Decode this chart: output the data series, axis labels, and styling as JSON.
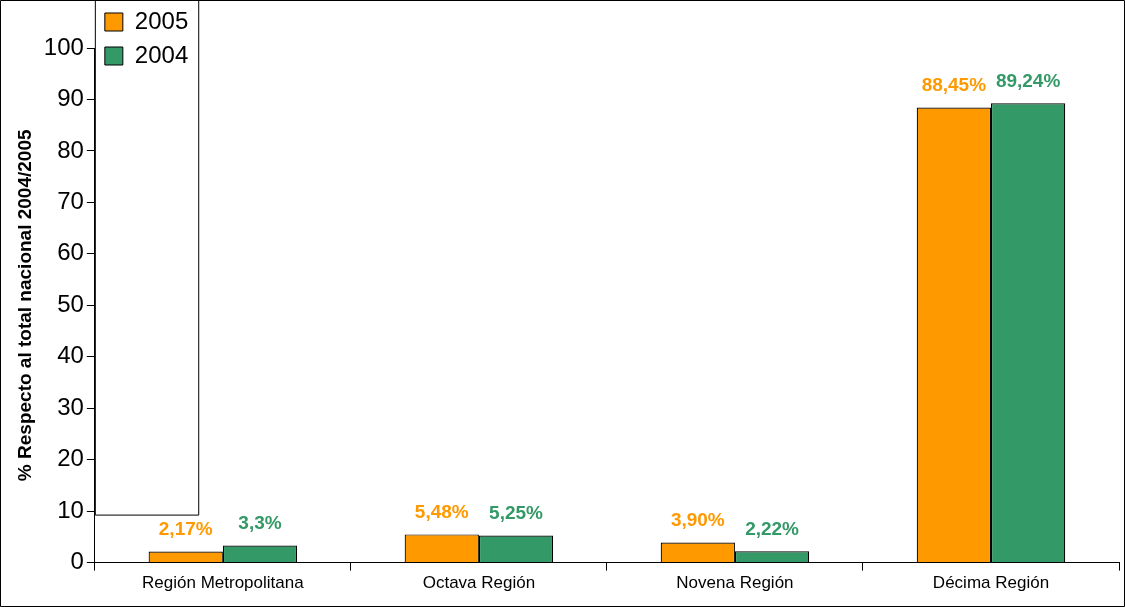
{
  "chart_data": {
    "type": "bar",
    "ylabel": "% Respecto al total nacional 2004/2005",
    "categories": [
      "Región Metropolitana",
      "Octava Región",
      "Novena Región",
      "Décima Región"
    ],
    "series": [
      {
        "name": "2005",
        "color": "#ff9900",
        "values": [
          2.17,
          5.48,
          3.9,
          88.45
        ],
        "value_labels": [
          "2,17%",
          "5,48%",
          "3,90%",
          "88,45%"
        ]
      },
      {
        "name": "2004",
        "color": "#339966",
        "values": [
          3.3,
          5.25,
          2.22,
          89.24
        ],
        "value_labels": [
          "3,3%",
          "5,25%",
          "2,22%",
          "89,24%"
        ]
      }
    ],
    "ylim": [
      0,
      100
    ],
    "yticks": [
      0,
      10,
      20,
      30,
      40,
      50,
      60,
      70,
      80,
      90,
      100
    ],
    "grid": false,
    "legend": "top left"
  }
}
